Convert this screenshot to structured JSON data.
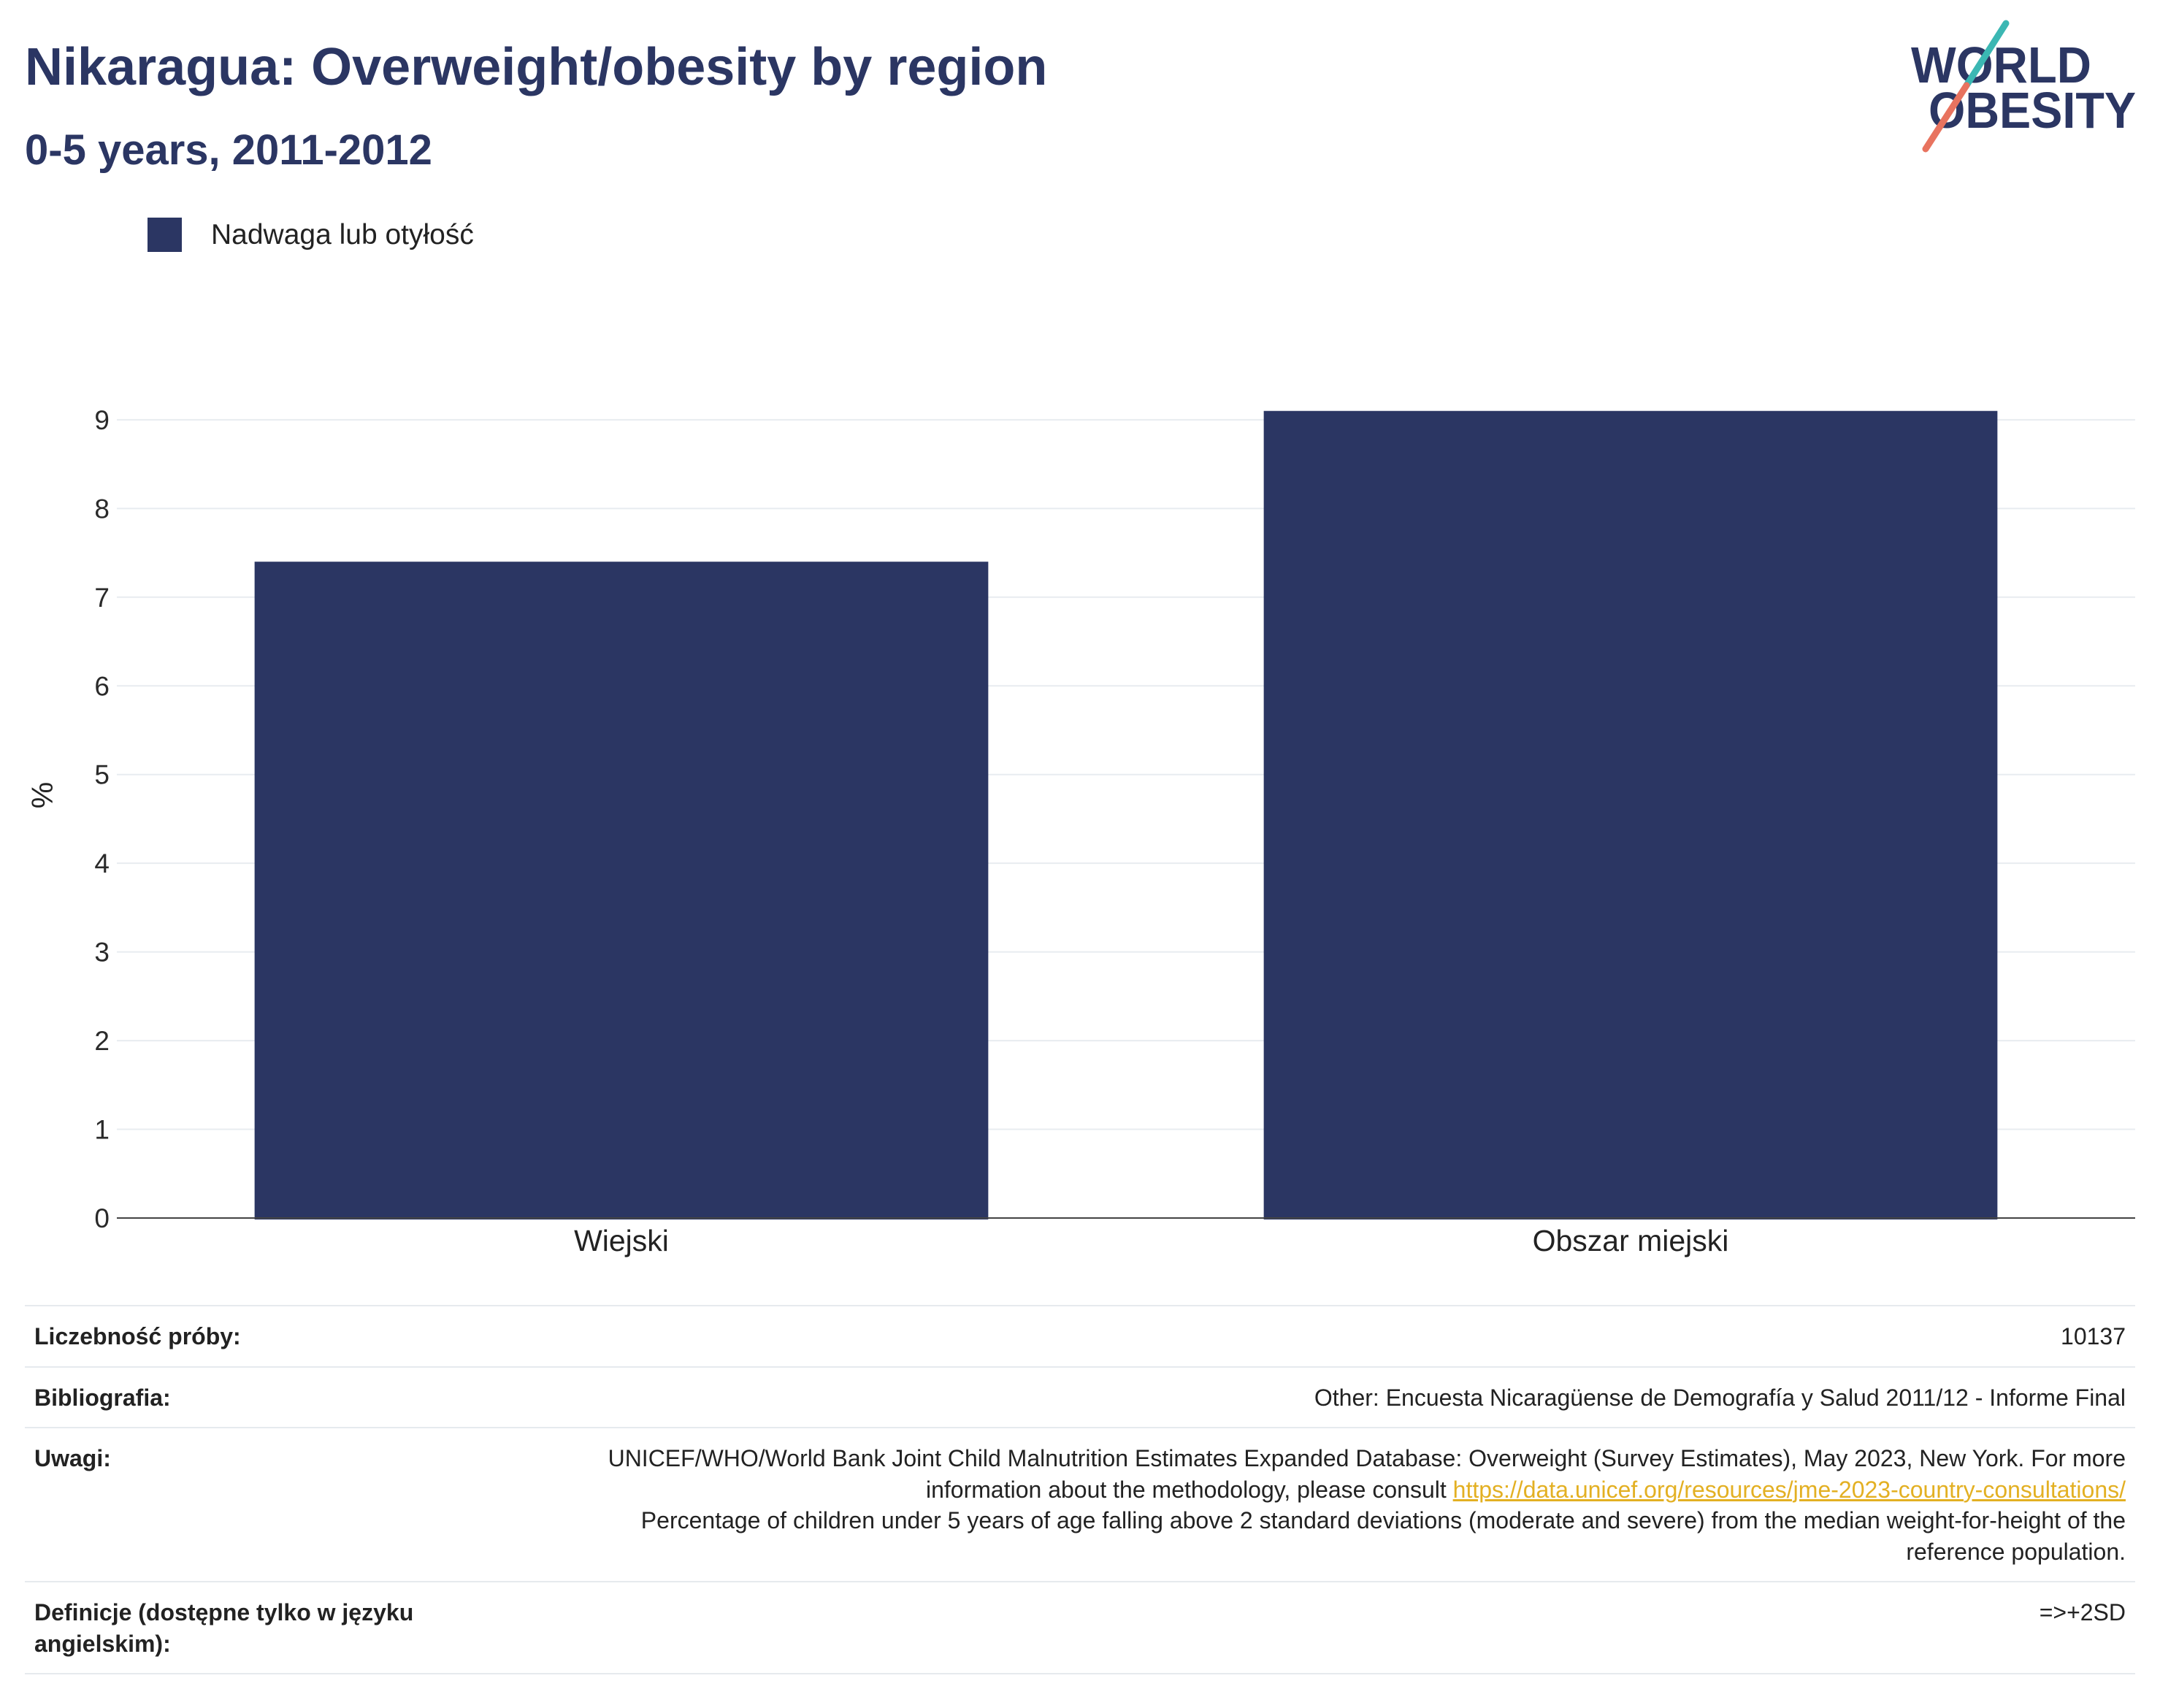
{
  "chart_data": {
    "type": "bar",
    "title": "Nikaragua: Overweight/obesity by region",
    "subtitle": "0-5 years, 2011-2012",
    "categories": [
      "Wiejski",
      "Obszar miejski"
    ],
    "series": [
      {
        "name": "Nadwaga lub otyłość",
        "values": [
          7.4,
          9.1
        ],
        "color": "#2b3663"
      }
    ],
    "ylabel": "%",
    "ylim": [
      0,
      9.6
    ],
    "yticks": [
      0,
      1,
      2,
      3,
      4,
      5,
      6,
      7,
      8,
      9
    ],
    "grid": true,
    "legend": "top-left"
  },
  "logo": {
    "line1": "WORLD",
    "line2": "OBESITY",
    "accent_top": "#3bb7b3",
    "accent_bottom": "#e8735f"
  },
  "footer": {
    "sample_size": {
      "label": "Liczebność próby:",
      "value": "10137"
    },
    "bibliography": {
      "label": "Bibliografia:",
      "value": "Other: Encuesta Nicaragüense de Demografía y Salud 2011/12 - Informe Final"
    },
    "notes": {
      "label": "Uwagi:",
      "text": "UNICEF/WHO/World Bank Joint Child Malnutrition Estimates Expanded Database: Overweight (Survey Estimates), May 2023, New York. For more information about the methodology, please consult",
      "link": "https://data.unicef.org/resources/jme-2023-country-consultations/",
      "text2": "Percentage of children under 5 years of age falling above 2 standard deviations (moderate and severe) from the median weight-for-height of the reference population."
    },
    "definitions": {
      "label": "Definicje (dostępne tylko w języku angielskim):",
      "value": "=>+2SD"
    }
  },
  "colors": {
    "brand": "#2b3663",
    "link": "#e3b023"
  }
}
